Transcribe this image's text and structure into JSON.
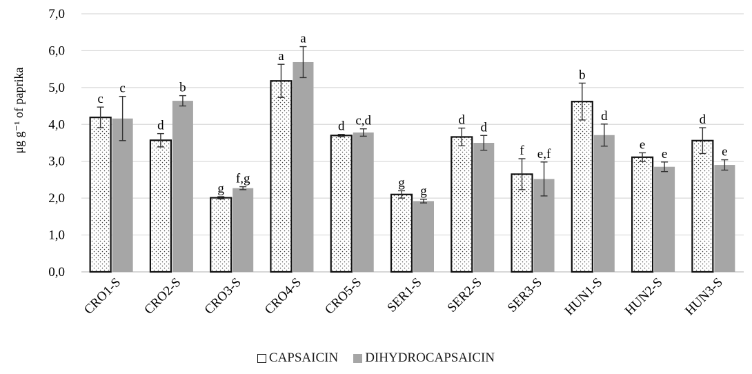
{
  "chart_data": {
    "type": "bar",
    "ylabel": "μg g⁻¹ of paprika",
    "ylim": [
      0,
      7
    ],
    "yticks": [
      "0,0",
      "1,0",
      "2,0",
      "3,0",
      "4,0",
      "5,0",
      "6,0",
      "7,0"
    ],
    "grid": true,
    "legend_position": "bottom",
    "categories": [
      "CRO1-S",
      "CRO2-S",
      "CRO3-S",
      "CRO4-S",
      "CRO5-S",
      "SER1-S",
      "SER2-S",
      "SER3-S",
      "HUN1-S",
      "HUN2-S",
      "HUN3-S"
    ],
    "series": [
      {
        "name": "CAPSAICIN",
        "style": "dotted-outline",
        "color": "#ffffff",
        "values": [
          4.19,
          3.57,
          2.01,
          5.18,
          3.7,
          2.1,
          3.66,
          2.65,
          4.62,
          3.11,
          3.56
        ],
        "errors": [
          0.28,
          0.18,
          0.03,
          0.45,
          0.03,
          0.1,
          0.24,
          0.42,
          0.5,
          0.12,
          0.35
        ],
        "labels": [
          "c",
          "d",
          "g",
          "a",
          "d",
          "g",
          "d",
          "f",
          "b",
          "e",
          "d"
        ]
      },
      {
        "name": "DIHYDROCAPSAICIN",
        "style": "solid",
        "color": "#a6a6a6",
        "values": [
          4.16,
          4.64,
          2.27,
          5.69,
          3.78,
          1.92,
          3.5,
          2.52,
          3.71,
          2.85,
          2.9
        ],
        "errors": [
          0.6,
          0.14,
          0.04,
          0.42,
          0.1,
          0.05,
          0.2,
          0.46,
          0.3,
          0.13,
          0.14
        ],
        "labels": [
          "c",
          "b",
          "f,g",
          "a",
          "c,d",
          "g",
          "d",
          "e,f",
          "d",
          "e",
          "e"
        ]
      }
    ]
  }
}
